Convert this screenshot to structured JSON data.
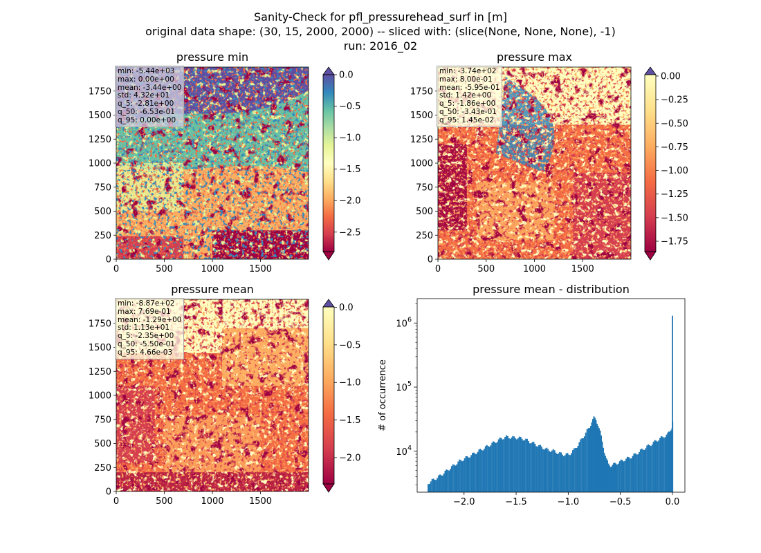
{
  "figure": {
    "title_lines": [
      "Sanity-Check for pfl_pressurehead_surf in [m]",
      "original data shape: (30, 15, 2000, 2000) -- sliced with: (slice(None, None, None), -1)",
      "run: 2016_02"
    ]
  },
  "panels": [
    {
      "title": "pressure min",
      "xticks": [
        "0",
        "500",
        "1000",
        "1500"
      ],
      "yticks": [
        "0",
        "250",
        "500",
        "750",
        "1000",
        "1250",
        "1500",
        "1750"
      ],
      "colorbar": {
        "ticks": [
          "0.0",
          "−0.5",
          "−1.0",
          "−1.5",
          "−2.0",
          "−2.5"
        ],
        "extend": "both",
        "vmin": -2.81,
        "vmax": 0.0
      },
      "stats": [
        "min: -5.44e+03",
        "max: 0.00e+00",
        "mean: -3.44e+00",
        "std: 4.32e+01",
        "q_5: -2.81e+00",
        "q_50: -6.53e-01",
        "q_95: 0.00e+00"
      ]
    },
    {
      "title": "pressure max",
      "xticks": [
        "0",
        "500",
        "1000",
        "1500"
      ],
      "yticks": [
        "0",
        "250",
        "500",
        "750",
        "1000",
        "1250",
        "1500",
        "1750"
      ],
      "colorbar": {
        "ticks": [
          "0.00",
          "−0.25",
          "−0.50",
          "−0.75",
          "−1.00",
          "−1.25",
          "−1.50",
          "−1.75"
        ],
        "extend": "both",
        "vmin": -1.86,
        "vmax": 0.0145
      },
      "stats": [
        "min: -3.74e+02",
        "max: 8.00e-01",
        "mean: -5.95e-01",
        "std: 1.42e+00",
        "q_5: -1.86e+00",
        "q_50: -3.43e-01",
        "q_95: 1.45e-02"
      ]
    },
    {
      "title": "pressure mean",
      "xticks": [
        "0",
        "500",
        "1000",
        "1500"
      ],
      "yticks": [
        "0",
        "250",
        "500",
        "750",
        "1000",
        "1250",
        "1500",
        "1750"
      ],
      "colorbar": {
        "ticks": [
          "0.0",
          "−0.5",
          "−1.0",
          "−1.5",
          "−2.0"
        ],
        "extend": "both",
        "vmin": -2.35,
        "vmax": 0.00466
      },
      "stats": [
        "min: -8.87e+02",
        "max: 7.69e-01",
        "mean: -1.29e+00",
        "std: 1.13e+01",
        "q_5: -2.35e+00",
        "q_50: -5.50e-01",
        "q_95: 4.66e-03"
      ]
    }
  ],
  "colors": {
    "spectral": [
      "#9e0142",
      "#d53e4f",
      "#f46d43",
      "#fdae61",
      "#fee08b",
      "#ffffbf",
      "#e6f598",
      "#abdda4",
      "#66c2a5",
      "#3288bd",
      "#5e4fa2"
    ],
    "hist_bar": "#1f77b4"
  },
  "chart_data": {
    "type": "bar",
    "title": "pressure mean - distribution",
    "xlabel": "",
    "ylabel": "# of occurrence",
    "yscale": "log",
    "xlim": [
      -2.45,
      0.12
    ],
    "ylim": [
      2300,
      2400000
    ],
    "xticks": [
      "−2.0",
      "−1.5",
      "−1.0",
      "−0.5",
      "0.0"
    ],
    "yticks": [
      "10^4",
      "10^5",
      "10^6"
    ],
    "bin_width": 0.0117,
    "x": [
      -2.35,
      -2.3,
      -2.25,
      -2.2,
      -2.15,
      -2.1,
      -2.05,
      -2.0,
      -1.95,
      -1.9,
      -1.85,
      -1.8,
      -1.75,
      -1.7,
      -1.65,
      -1.6,
      -1.55,
      -1.5,
      -1.45,
      -1.4,
      -1.35,
      -1.3,
      -1.25,
      -1.2,
      -1.15,
      -1.1,
      -1.05,
      -1.0,
      -0.95,
      -0.9,
      -0.85,
      -0.8,
      -0.78,
      -0.76,
      -0.74,
      -0.72,
      -0.7,
      -0.68,
      -0.66,
      -0.64,
      -0.62,
      -0.6,
      -0.58,
      -0.55,
      -0.5,
      -0.45,
      -0.4,
      -0.35,
      -0.3,
      -0.25,
      -0.2,
      -0.15,
      -0.1,
      -0.05,
      -0.03,
      -0.02,
      -0.01,
      -0.005,
      0.0
    ],
    "values": [
      3200,
      3600,
      4000,
      4600,
      5300,
      6100,
      7000,
      7700,
      8500,
      9400,
      10400,
      11500,
      12800,
      14200,
      15800,
      16800,
      16400,
      16300,
      15900,
      14800,
      13500,
      12400,
      11400,
      10500,
      10200,
      9400,
      8900,
      8900,
      10500,
      13500,
      18000,
      24000,
      29000,
      33000,
      31000,
      26000,
      20000,
      14000,
      10000,
      7500,
      6200,
      6000,
      6100,
      6400,
      7000,
      7600,
      8200,
      9200,
      10500,
      11800,
      13200,
      15000,
      16600,
      18500,
      20500,
      22500,
      24000,
      30000,
      1300000
    ]
  }
}
